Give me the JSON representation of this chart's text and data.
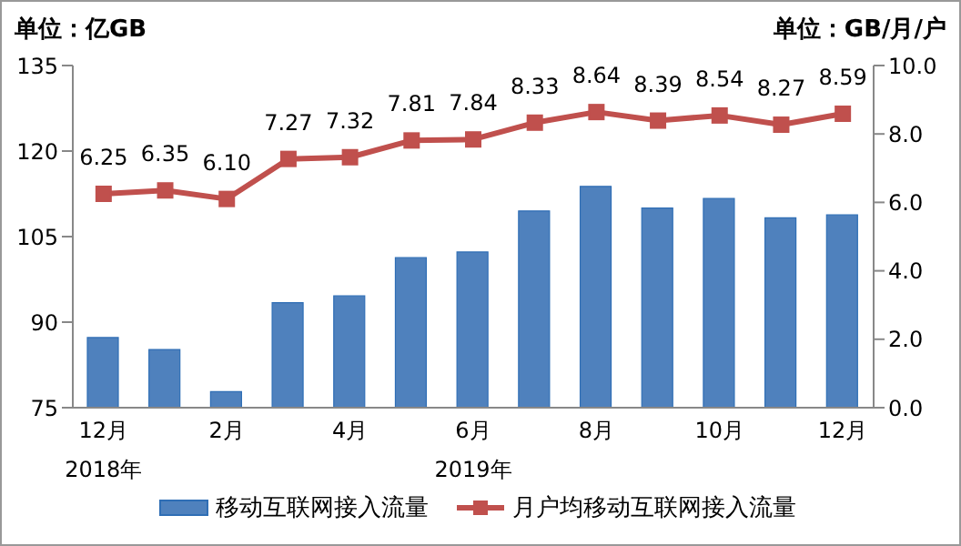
{
  "chart_data": {
    "type": "bar",
    "ylabel": "单位：亿GB",
    "y2label": "单位：GB/月/户",
    "categories": [
      "12月",
      null,
      "2月",
      null,
      "4月",
      null,
      "6月",
      null,
      "8月",
      null,
      "10月",
      null,
      "12月"
    ],
    "series": [
      {
        "name": "移动互联网接入流量",
        "color": "#4f81bd",
        "values": [
          87.3,
          85.2,
          77.8,
          93.4,
          94.6,
          101.3,
          102.3,
          109.5,
          113.8,
          110.0,
          111.7,
          108.3,
          108.8
        ]
      },
      {
        "name": "月户均移动互联网接入流量",
        "type": "line",
        "axis": "y2",
        "color": "#c0504d",
        "marker": "square",
        "values": [
          6.25,
          6.35,
          6.1,
          7.27,
          7.32,
          7.81,
          7.84,
          8.33,
          8.64,
          8.39,
          8.54,
          8.27,
          8.59
        ],
        "value_labels": [
          "6.25",
          "6.35",
          "6.10",
          "7.27",
          "7.32",
          "7.81",
          "7.84",
          "8.33",
          "8.64",
          "8.39",
          "8.54",
          "8.27",
          "8.59"
        ]
      }
    ],
    "ylim": [
      75,
      135
    ],
    "yticks": [
      75,
      90,
      105,
      120,
      135
    ],
    "y2lim": [
      0,
      10
    ],
    "y2ticks": [
      {
        "value": 0,
        "label": "0.0"
      },
      {
        "value": 2,
        "label": "2.0"
      },
      {
        "value": 4,
        "label": "4.0"
      },
      {
        "value": 6,
        "label": "6.0"
      },
      {
        "value": 8,
        "label": "8.0"
      },
      {
        "value": 10,
        "label": "10.0"
      }
    ],
    "annotations": [
      "2018年",
      "2019年"
    ],
    "grid": false,
    "legend": "bottom"
  }
}
